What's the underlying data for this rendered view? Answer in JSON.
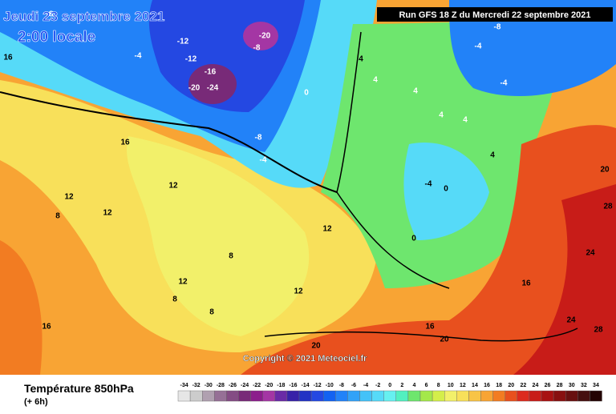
{
  "header": {
    "date": "Jeudi 23 septembre 2021",
    "time": "2:00 locale",
    "run": "Run GFS 18 Z du Mercredi 22 septembre 2021"
  },
  "copyright": "Copyright © 2021 Meteociel.fr",
  "footer": {
    "title": "Température 850hPa",
    "step": "(+ 6h)"
  },
  "legend": {
    "values": [
      -34,
      -32,
      -30,
      -28,
      -26,
      -24,
      -22,
      -20,
      -18,
      -16,
      -14,
      -12,
      -10,
      -8,
      -6,
      -4,
      -2,
      0,
      2,
      4,
      6,
      8,
      10,
      12,
      14,
      16,
      18,
      20,
      22,
      24,
      26,
      28,
      30,
      32,
      34
    ],
    "colors": [
      "#e6e6e6",
      "#cccccc",
      "#b0a0b0",
      "#967096",
      "#844c84",
      "#782a78",
      "#8c1e8c",
      "#a436a4",
      "#6a2aa6",
      "#3822a8",
      "#2232c4",
      "#2448e2",
      "#1262f2",
      "#2282f8",
      "#32a2f8",
      "#44c2f8",
      "#56daf8",
      "#66f0f0",
      "#52f0c0",
      "#6ee66e",
      "#a4e84a",
      "#d4ee4a",
      "#f2f06a",
      "#f8e05a",
      "#f8c446",
      "#f8a434",
      "#f27c22",
      "#e8501e",
      "#dc2a1e",
      "#c81c18",
      "#a81212",
      "#881010",
      "#681010",
      "#461010",
      "#240404"
    ]
  },
  "map_labels": [
    "-12",
    "-12",
    "-20",
    "-16",
    "-24",
    "-20",
    "-8",
    "-4",
    "-4",
    "-8",
    "0",
    "-4",
    "4",
    "4",
    "4",
    "4",
    "-8",
    "-4",
    "-8",
    "8",
    "12",
    "12",
    "12",
    "16",
    "8",
    "12",
    "8",
    "12",
    "12",
    "8",
    "16",
    "16",
    "16",
    "16",
    "20",
    "20",
    "24",
    "28",
    "24",
    "20",
    "28",
    "-4",
    "0",
    "0",
    "4",
    "4"
  ]
}
